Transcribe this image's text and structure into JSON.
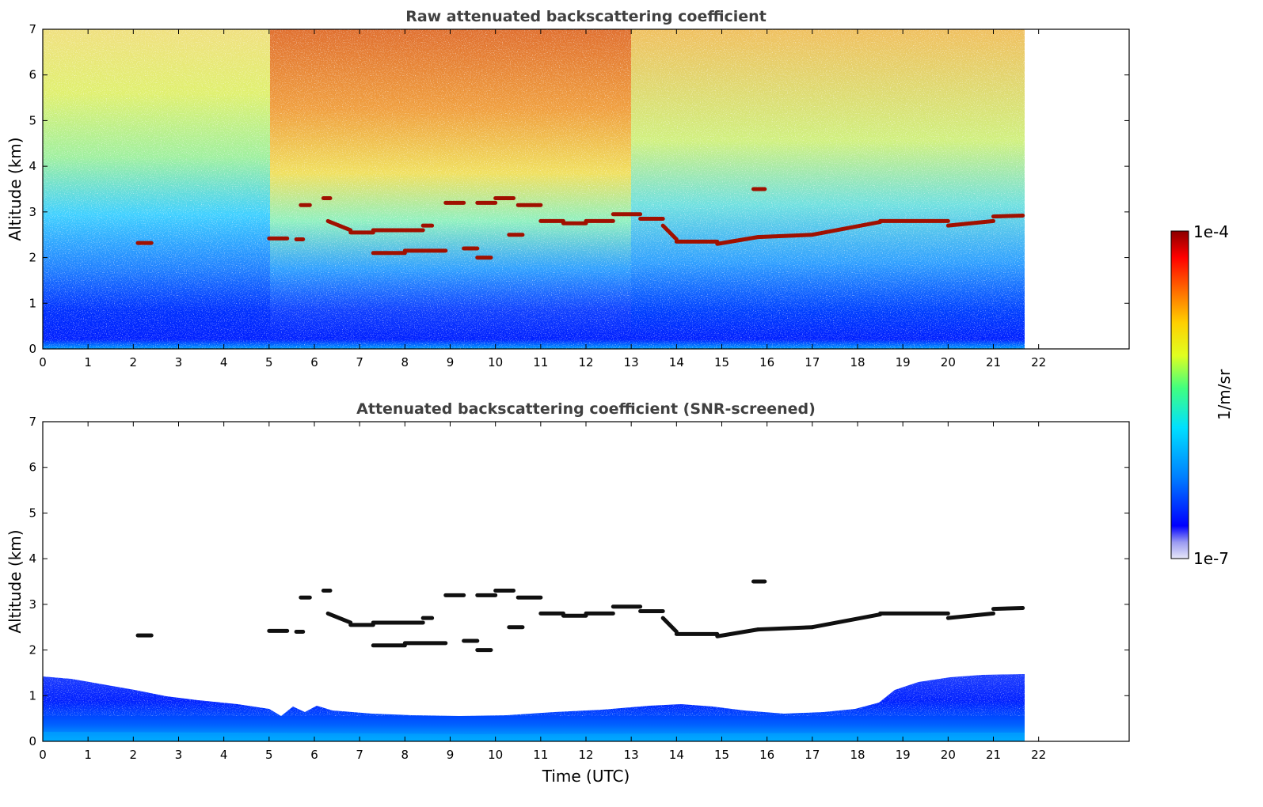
{
  "chart_data": [
    {
      "type": "heatmap",
      "title": "Raw attenuated backscattering coefficient",
      "xlabel": "",
      "ylabel": "Altitude (km)",
      "xlim": [
        0,
        24
      ],
      "ylim": [
        0,
        7
      ],
      "xticks": [
        0,
        1,
        2,
        3,
        4,
        5,
        6,
        7,
        8,
        9,
        10,
        11,
        12,
        13,
        14,
        15,
        16,
        17,
        18,
        19,
        20,
        21,
        22
      ],
      "yticks": [
        0,
        1,
        2,
        3,
        4,
        5,
        6,
        7
      ],
      "data_extent_x": [
        0,
        21.65
      ],
      "noise_filtered": false,
      "cloud_layers": [
        {
          "x": [
            2.1,
            2.4
          ],
          "y": 2.32
        },
        {
          "x": [
            5.0,
            5.4
          ],
          "y": 2.42
        },
        {
          "x": [
            5.6,
            5.75
          ],
          "y": 2.4
        },
        {
          "x": [
            5.7,
            5.9
          ],
          "y": 3.15
        },
        {
          "x": [
            6.2,
            6.35
          ],
          "y": 3.3
        },
        {
          "x": [
            6.3,
            6.8
          ],
          "y": [
            2.8,
            2.6
          ]
        },
        {
          "x": [
            6.8,
            7.3
          ],
          "y": 2.55
        },
        {
          "x": [
            7.3,
            8.4
          ],
          "y": 2.6
        },
        {
          "x": [
            8.4,
            8.6
          ],
          "y": 2.7
        },
        {
          "x": [
            7.3,
            8.0
          ],
          "y": 2.1
        },
        {
          "x": [
            8.0,
            8.9
          ],
          "y": 2.15
        },
        {
          "x": [
            8.9,
            9.3
          ],
          "y": 3.2
        },
        {
          "x": [
            9.3,
            9.6
          ],
          "y": 2.2
        },
        {
          "x": [
            9.6,
            9.9
          ],
          "y": 2.0
        },
        {
          "x": [
            9.6,
            10.0
          ],
          "y": 3.2
        },
        {
          "x": [
            10.0,
            10.4
          ],
          "y": 3.3
        },
        {
          "x": [
            10.3,
            10.6
          ],
          "y": 2.5
        },
        {
          "x": [
            10.5,
            11.0
          ],
          "y": 3.15
        },
        {
          "x": [
            11.0,
            11.5
          ],
          "y": 2.8
        },
        {
          "x": [
            11.5,
            12.0
          ],
          "y": 2.75
        },
        {
          "x": [
            12.0,
            12.6
          ],
          "y": 2.8
        },
        {
          "x": [
            12.6,
            13.2
          ],
          "y": 2.95
        },
        {
          "x": [
            13.2,
            13.7
          ],
          "y": 2.85
        },
        {
          "x": [
            13.7,
            14.0
          ],
          "y": [
            2.7,
            2.4
          ]
        },
        {
          "x": [
            14.0,
            14.9
          ],
          "y": 2.35
        },
        {
          "x": [
            14.9,
            15.8
          ],
          "y": [
            2.3,
            2.45
          ]
        },
        {
          "x": [
            15.7,
            15.95
          ],
          "y": 3.5
        },
        {
          "x": [
            15.8,
            17.0
          ],
          "y": [
            2.45,
            2.5
          ]
        },
        {
          "x": [
            17.0,
            18.5
          ],
          "y": [
            2.5,
            2.78
          ]
        },
        {
          "x": [
            18.5,
            20.0
          ],
          "y": 2.8
        },
        {
          "x": [
            20.0,
            21.0
          ],
          "y": [
            2.7,
            2.8
          ]
        },
        {
          "x": [
            21.0,
            21.65
          ],
          "y": [
            2.9,
            2.92
          ]
        }
      ]
    },
    {
      "type": "heatmap",
      "title": "Attenuated backscattering coefficient (SNR-screened)",
      "xlabel": "Time (UTC)",
      "ylabel": "Altitude (km)",
      "xlim": [
        0,
        24
      ],
      "ylim": [
        0,
        7
      ],
      "xticks": [
        0,
        1,
        2,
        3,
        4,
        5,
        6,
        7,
        8,
        9,
        10,
        11,
        12,
        13,
        14,
        15,
        16,
        17,
        18,
        19,
        20,
        21,
        22
      ],
      "yticks": [
        0,
        1,
        2,
        3,
        4,
        5,
        6,
        7
      ],
      "data_extent_x": [
        0,
        21.65
      ],
      "noise_filtered": true
    }
  ],
  "colorbar": {
    "max_label": "1e-4",
    "min_label": "1e-7",
    "unit_label": "1/m/sr",
    "scale": "log",
    "colors": [
      "#e8e8f8",
      "#9a9af2",
      "#0000ff",
      "#0080ff",
      "#00e0ff",
      "#40ff80",
      "#e0ff20",
      "#ffd000",
      "#ff6000",
      "#ff0000",
      "#8b0000"
    ]
  }
}
